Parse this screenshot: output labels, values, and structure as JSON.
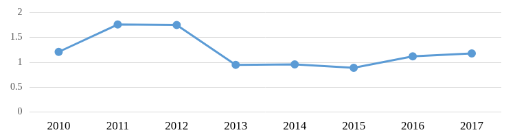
{
  "chart_data": {
    "type": "line",
    "categories": [
      "2010",
      "2011",
      "2012",
      "2013",
      "2014",
      "2015",
      "2016",
      "2017"
    ],
    "values": [
      1.21,
      1.76,
      1.75,
      0.95,
      0.96,
      0.89,
      1.12,
      1.18
    ],
    "color": "#5b9bd5",
    "marker": "circle",
    "line_style": "solid",
    "ylim": [
      0,
      2
    ],
    "yticks": [
      0,
      0.5,
      1,
      1.5,
      2
    ],
    "grid": true
  }
}
